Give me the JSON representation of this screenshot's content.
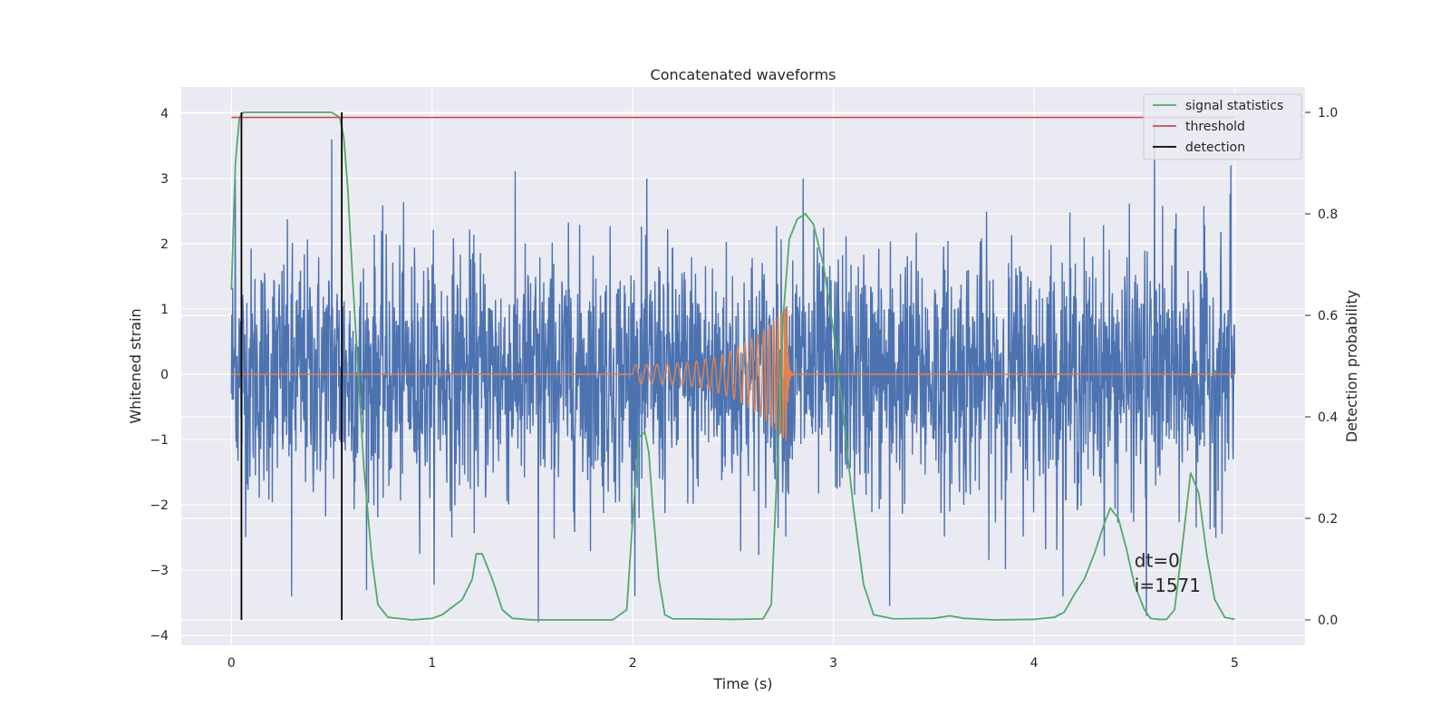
{
  "chart_data": {
    "type": "line",
    "title": "Concatenated waveforms",
    "xlabel": "Time (s)",
    "ylabel": "Whitened strain",
    "y2label": "Detection probability",
    "xlim": [
      -0.25,
      5.35
    ],
    "ylim": [
      -4.15,
      4.4
    ],
    "y2lim": [
      -0.05,
      1.05
    ],
    "xticks": [
      0,
      1,
      2,
      3,
      4,
      5
    ],
    "yticks": [
      -4,
      -3,
      -2,
      -1,
      0,
      1,
      2,
      3,
      4
    ],
    "y2ticks": [
      0.0,
      0.2,
      0.4,
      0.6,
      0.8,
      1.0
    ],
    "xtick_labels": [
      "0",
      "1",
      "2",
      "3",
      "4",
      "5"
    ],
    "ytick_labels": [
      "−4",
      "−3",
      "−2",
      "−1",
      "0",
      "1",
      "2",
      "3",
      "4"
    ],
    "y2tick_labels": [
      "0.0",
      "0.2",
      "0.4",
      "0.6",
      "0.8",
      "1.0"
    ],
    "grid": true,
    "legend_position": "top-right",
    "series": [
      {
        "name": "",
        "role": "whitened-noise",
        "color": "#4c72b0",
        "axis": "left",
        "x_range": [
          0,
          5
        ],
        "approx_amplitude": 1.0,
        "notable_spikes": [
          {
            "x": 0.02,
            "y": 3.0
          },
          {
            "x": 0.5,
            "y": 3.6
          },
          {
            "x": 0.3,
            "y": -3.4
          },
          {
            "x": 1.53,
            "y": -3.8
          },
          {
            "x": 2.85,
            "y": 3.0
          },
          {
            "x": 3.28,
            "y": -3.55
          },
          {
            "x": 4.6,
            "y": 3.9
          },
          {
            "x": 4.56,
            "y": -3.7
          },
          {
            "x": 4.98,
            "y": 3.2
          }
        ]
      },
      {
        "name": "",
        "role": "injected-chirp",
        "color": "#dd8452",
        "axis": "left",
        "x_range": [
          0,
          5
        ],
        "chirp_start": 2.0,
        "chirp_end": 2.77,
        "start_amplitude": 0.15,
        "peak_amplitude": 1.05
      },
      {
        "name": "signal statistics",
        "color": "#55a868",
        "axis": "right",
        "x": [
          0,
          0.02,
          0.04,
          0.06,
          0.1,
          0.2,
          0.4,
          0.5,
          0.54,
          0.56,
          0.58,
          0.6,
          0.63,
          0.66,
          0.7,
          0.73,
          0.78,
          0.9,
          1.0,
          1.05,
          1.1,
          1.15,
          1.2,
          1.22,
          1.25,
          1.3,
          1.35,
          1.4,
          1.5,
          1.7,
          1.9,
          1.97,
          2.0,
          2.03,
          2.06,
          2.08,
          2.1,
          2.13,
          2.16,
          2.2,
          2.3,
          2.5,
          2.65,
          2.69,
          2.72,
          2.75,
          2.78,
          2.82,
          2.86,
          2.9,
          2.95,
          3.0,
          3.05,
          3.1,
          3.15,
          3.2,
          3.3,
          3.5,
          3.58,
          3.65,
          3.8,
          4.0,
          4.1,
          4.15,
          4.2,
          4.25,
          4.3,
          4.35,
          4.38,
          4.42,
          4.46,
          4.5,
          4.55,
          4.58,
          4.62,
          4.66,
          4.7,
          4.74,
          4.78,
          4.82,
          4.86,
          4.9,
          4.95,
          5.0
        ],
        "y": [
          0.65,
          0.9,
          0.99,
          1.0,
          1.0,
          1.0,
          1.0,
          1.0,
          0.99,
          0.95,
          0.85,
          0.7,
          0.5,
          0.3,
          0.12,
          0.03,
          0.005,
          0.0,
          0.003,
          0.01,
          0.025,
          0.04,
          0.08,
          0.13,
          0.13,
          0.08,
          0.02,
          0.003,
          0.0,
          0.0,
          0.0,
          0.02,
          0.2,
          0.36,
          0.37,
          0.33,
          0.22,
          0.08,
          0.01,
          0.002,
          0.002,
          0.001,
          0.002,
          0.03,
          0.3,
          0.6,
          0.75,
          0.79,
          0.8,
          0.78,
          0.7,
          0.57,
          0.4,
          0.22,
          0.07,
          0.01,
          0.002,
          0.003,
          0.008,
          0.003,
          0.0,
          0.001,
          0.005,
          0.015,
          0.05,
          0.08,
          0.13,
          0.19,
          0.22,
          0.2,
          0.14,
          0.07,
          0.02,
          0.003,
          0.001,
          0.001,
          0.02,
          0.15,
          0.29,
          0.25,
          0.13,
          0.04,
          0.005,
          0.001
        ]
      },
      {
        "name": "threshold",
        "color": "#c44e52",
        "axis": "right",
        "x": [
          0,
          5
        ],
        "y": [
          0.99,
          0.99
        ]
      },
      {
        "name": "detection",
        "color": "#000000",
        "axis": "right",
        "vlines": [
          0.05,
          0.55
        ],
        "y": [
          0.0,
          1.0
        ]
      }
    ],
    "annotations": [
      {
        "text": "dt=0",
        "x": 4.5,
        "y": -2.95
      },
      {
        "text": "i=1571",
        "x": 4.5,
        "y": -3.33
      }
    ]
  }
}
